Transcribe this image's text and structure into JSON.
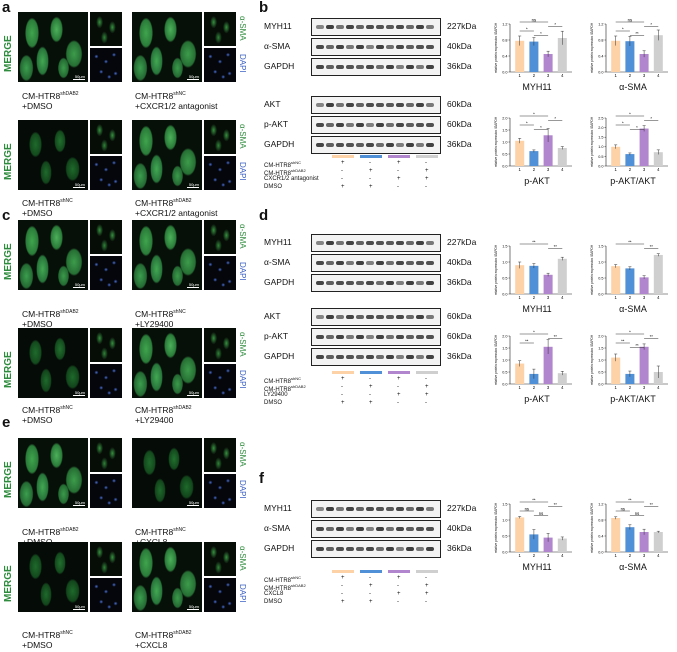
{
  "panels": {
    "a": {
      "letter": "a"
    },
    "b": {
      "letter": "b"
    },
    "c": {
      "letter": "c"
    },
    "d": {
      "letter": "d"
    },
    "e": {
      "letter": "e"
    },
    "f": {
      "letter": "f"
    }
  },
  "micro_labels": {
    "merge": "MERGE",
    "asma": "α-SMA",
    "dapi": "DAPI",
    "scale": "50μm"
  },
  "conditions": {
    "a": [
      {
        "base": "CM-HTR8",
        "sup": "shDAB2",
        "line2": "+DMSO"
      },
      {
        "base": "CM-HTR8",
        "sup": "shNC",
        "line2": "+CXCR1/2 antagonist"
      },
      {
        "base": "CM-HTR8",
        "sup": "shNC",
        "line2": "+DMSO"
      },
      {
        "base": "CM-HTR8",
        "sup": "shDAB2",
        "line2": "+CXCR1/2 antagonist"
      }
    ],
    "c": [
      {
        "base": "CM-HTR8",
        "sup": "shDAB2",
        "line2": "+DMSO"
      },
      {
        "base": "CM-HTR8",
        "sup": "shNC",
        "line2": "+LY29400"
      },
      {
        "base": "CM-HTR8",
        "sup": "shNC",
        "line2": "+DMSO"
      },
      {
        "base": "CM-HTR8",
        "sup": "shDAB2",
        "line2": "+LY29400"
      }
    ],
    "e": [
      {
        "base": "CM-HTR8",
        "sup": "shDAB2",
        "line2": "+DMSO"
      },
      {
        "base": "CM-HTR8",
        "sup": "shNC",
        "line2": "+CXCL8"
      },
      {
        "base": "CM-HTR8",
        "sup": "shNC",
        "line2": "+DMSO"
      },
      {
        "base": "CM-HTR8",
        "sup": "shDAB2",
        "line2": "+CXCL8"
      }
    ]
  },
  "blots": {
    "b": [
      {
        "name": "MYH11",
        "kda": "227kDa"
      },
      {
        "name": "α-SMA",
        "kda": "40kDa"
      },
      {
        "name": "GAPDH",
        "kda": "36kDa"
      },
      {
        "name": "AKT",
        "kda": "60kDa"
      },
      {
        "name": "p-AKT",
        "kda": "60kDa"
      },
      {
        "name": "GAPDH",
        "kda": "36kDa"
      }
    ],
    "d": [
      {
        "name": "MYH11",
        "kda": "227kDa"
      },
      {
        "name": "α-SMA",
        "kda": "40kDa"
      },
      {
        "name": "GAPDH",
        "kda": "36kDa"
      },
      {
        "name": "AKT",
        "kda": "60kDa"
      },
      {
        "name": "p-AKT",
        "kda": "60kDa"
      },
      {
        "name": "GAPDH",
        "kda": "36kDa"
      }
    ],
    "f": [
      {
        "name": "MYH11",
        "kda": "227kDa"
      },
      {
        "name": "α-SMA",
        "kda": "40kDa"
      },
      {
        "name": "GAPDH",
        "kda": "36kDa"
      }
    ]
  },
  "treatments": {
    "b": {
      "rows": [
        {
          "base": "CM-HTR8",
          "sup": "shNC",
          "signs": [
            "+",
            "-",
            "+",
            "-"
          ]
        },
        {
          "base": "CM-HTR8",
          "sup": "shDAB2",
          "signs": [
            "-",
            "+",
            "-",
            "+"
          ]
        },
        {
          "base": "CXCR1/2 antagonist",
          "sup": "",
          "signs": [
            "-",
            "-",
            "+",
            "+"
          ]
        },
        {
          "base": "DMSO",
          "sup": "",
          "signs": [
            "+",
            "+",
            "-",
            "-"
          ]
        }
      ]
    },
    "d": {
      "rows": [
        {
          "base": "CM-HTR8",
          "sup": "shNC",
          "signs": [
            "+",
            "-",
            "+",
            "-"
          ]
        },
        {
          "base": "CM-HTR8",
          "sup": "shDAB2",
          "signs": [
            "-",
            "+",
            "-",
            "+"
          ]
        },
        {
          "base": "LY29400",
          "sup": "",
          "signs": [
            "-",
            "-",
            "+",
            "+"
          ]
        },
        {
          "base": "DMSO",
          "sup": "",
          "signs": [
            "+",
            "+",
            "-",
            "-"
          ]
        }
      ]
    },
    "f": {
      "rows": [
        {
          "base": "CM-HTR8",
          "sup": "shNC",
          "signs": [
            "+",
            "-",
            "+",
            "-"
          ]
        },
        {
          "base": "CM-HTR8",
          "sup": "shDAB2",
          "signs": [
            "-",
            "+",
            "-",
            "+"
          ]
        },
        {
          "base": "CXCL8",
          "sup": "",
          "signs": [
            "-",
            "-",
            "+",
            "+"
          ]
        },
        {
          "base": "DMSO",
          "sup": "",
          "signs": [
            "+",
            "+",
            "-",
            "-"
          ]
        }
      ]
    }
  },
  "colors": {
    "group1": "#fdd2a6",
    "group2": "#4f90d6",
    "group3": "#b286cf",
    "group4": "#cfcfcf"
  },
  "chart_data": [
    {
      "id": "b1",
      "type": "bar",
      "title": "MYH11",
      "ylabel": "relative protein expression /GAPDH",
      "categories": [
        "1",
        "2",
        "3",
        "4"
      ],
      "values": [
        0.78,
        0.76,
        0.45,
        0.85
      ],
      "errors": [
        0.12,
        0.1,
        0.07,
        0.17
      ],
      "ylim": [
        0,
        1.2
      ],
      "yticks": [
        "0.0",
        "0.4",
        "0.8",
        "1.2"
      ],
      "sig": [
        "ns",
        "*",
        "*",
        "*"
      ]
    },
    {
      "id": "b2",
      "type": "bar",
      "title": "α-SMA",
      "ylabel": "relative protein expression /GAPDH",
      "categories": [
        "1",
        "2",
        "3",
        "4"
      ],
      "values": [
        0.78,
        0.77,
        0.45,
        0.92
      ],
      "errors": [
        0.12,
        0.12,
        0.08,
        0.13
      ],
      "ylim": [
        0,
        1.2
      ],
      "yticks": [
        "0.0",
        "0.4",
        "0.8",
        "1.2"
      ],
      "sig": [
        "ns",
        "*",
        "*",
        "**"
      ]
    },
    {
      "id": "b3",
      "type": "bar",
      "title": "p-AKT",
      "ylabel": "relative protein expression /GAPDH",
      "categories": [
        "1",
        "2",
        "3",
        "4"
      ],
      "values": [
        1.05,
        0.62,
        1.28,
        0.75
      ],
      "errors": [
        0.1,
        0.05,
        0.28,
        0.06
      ],
      "ylim": [
        0,
        2.0
      ],
      "yticks": [
        "0.0",
        "0.5",
        "1.0",
        "1.5",
        "2.0"
      ],
      "sig": [
        "*",
        "*",
        "*",
        "*"
      ]
    },
    {
      "id": "b4",
      "type": "bar",
      "title": "p-AKT/AKT",
      "ylabel": "relative protein expression /GAPDH",
      "categories": [
        "1",
        "2",
        "3",
        "4"
      ],
      "values": [
        1.0,
        0.62,
        1.95,
        0.72
      ],
      "errors": [
        0.1,
        0.06,
        0.15,
        0.12
      ],
      "ylim": [
        0,
        2.5
      ],
      "yticks": [
        "0.0",
        "0.5",
        "1.0",
        "1.5",
        "2.0",
        "2.5"
      ],
      "sig": [
        "*",
        "*",
        "*",
        "*"
      ]
    },
    {
      "id": "d1",
      "type": "bar",
      "title": "MYH11",
      "ylabel": "relative protein expression /GAPDH",
      "categories": [
        "1",
        "2",
        "3",
        "4"
      ],
      "values": [
        0.9,
        0.88,
        0.6,
        1.1
      ],
      "errors": [
        0.1,
        0.07,
        0.05,
        0.05
      ],
      "ylim": [
        0,
        1.5
      ],
      "yticks": [
        "0.0",
        "0.5",
        "1.0",
        "1.5"
      ],
      "sig": [
        "**",
        "**"
      ]
    },
    {
      "id": "d2",
      "type": "bar",
      "title": "α-SMA",
      "ylabel": "relative protein expression /GAPDH",
      "categories": [
        "1",
        "2",
        "3",
        "4"
      ],
      "values": [
        0.87,
        0.8,
        0.52,
        1.22
      ],
      "errors": [
        0.05,
        0.05,
        0.05,
        0.04
      ],
      "ylim": [
        0,
        1.5
      ],
      "yticks": [
        "0.0",
        "0.5",
        "1.0",
        "1.5"
      ],
      "sig": [
        "**",
        "**"
      ]
    },
    {
      "id": "d3",
      "type": "bar",
      "title": "p-AKT",
      "ylabel": "relative protein expression /GAPDH",
      "categories": [
        "1",
        "2",
        "3",
        "4"
      ],
      "values": [
        0.85,
        0.42,
        1.55,
        0.45
      ],
      "errors": [
        0.12,
        0.2,
        0.3,
        0.08
      ],
      "ylim": [
        0,
        2.0
      ],
      "yticks": [
        "0.0",
        "0.5",
        "1.0",
        "1.5",
        "2.0"
      ],
      "sig": [
        "*",
        "**",
        "**"
      ]
    },
    {
      "id": "d4",
      "type": "bar",
      "title": "p-AKT/AKT",
      "ylabel": "relative protein expression /GAPDH",
      "categories": [
        "1",
        "2",
        "3",
        "4"
      ],
      "values": [
        1.1,
        0.42,
        1.55,
        0.5
      ],
      "errors": [
        0.15,
        0.12,
        0.12,
        0.25
      ],
      "ylim": [
        0,
        2.0
      ],
      "yticks": [
        "0.0",
        "0.5",
        "1.0",
        "1.5",
        "2.0"
      ],
      "sig": [
        "*",
        "**",
        "**",
        "**"
      ]
    },
    {
      "id": "f1",
      "type": "bar",
      "title": "MYH11",
      "ylabel": "relative protein expression /GAPDH",
      "categories": [
        "1",
        "2",
        "3",
        "4"
      ],
      "values": [
        1.08,
        0.55,
        0.45,
        0.42
      ],
      "errors": [
        0.03,
        0.15,
        0.13,
        0.05
      ],
      "ylim": [
        0,
        1.5
      ],
      "yticks": [
        "0.0",
        "0.5",
        "1.0",
        "1.5"
      ],
      "sig": [
        "**",
        "**",
        "ns",
        "ns"
      ]
    },
    {
      "id": "f2",
      "type": "bar",
      "title": "α-SMA",
      "ylabel": "relative protein expression /GAPDH",
      "categories": [
        "1",
        "2",
        "3",
        "4"
      ],
      "values": [
        0.85,
        0.62,
        0.5,
        0.5
      ],
      "errors": [
        0.03,
        0.06,
        0.07,
        0.02
      ],
      "ylim": [
        0,
        1.2
      ],
      "yticks": [
        "0.0",
        "0.4",
        "0.8",
        "1.2"
      ],
      "sig": [
        "**",
        "**",
        "ns",
        "ns"
      ]
    }
  ]
}
